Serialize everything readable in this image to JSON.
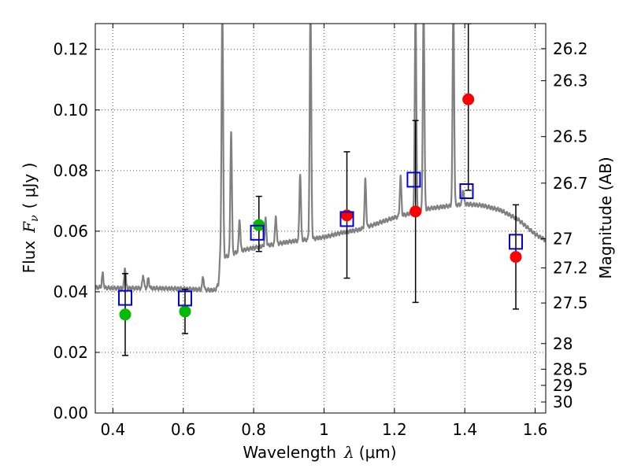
{
  "chart_data": {
    "type": "scatter",
    "xlim": [
      0.35,
      1.63
    ],
    "ylim": [
      0.0,
      0.1285
    ],
    "xticks": [
      {
        "value": 0.4,
        "label": "0.4"
      },
      {
        "value": 0.6,
        "label": "0.6"
      },
      {
        "value": 0.8,
        "label": "0.8"
      },
      {
        "value": 1.0,
        "label": "1"
      },
      {
        "value": 1.2,
        "label": "1.2"
      },
      {
        "value": 1.4,
        "label": "1.4"
      },
      {
        "value": 1.6,
        "label": "1.6"
      }
    ],
    "yticks": [
      {
        "value": 0.0,
        "label": "0.00"
      },
      {
        "value": 0.02,
        "label": "0.02"
      },
      {
        "value": 0.04,
        "label": "0.04"
      },
      {
        "value": 0.06,
        "label": "0.06"
      },
      {
        "value": 0.08,
        "label": "0.08"
      },
      {
        "value": 0.1,
        "label": "0.10"
      },
      {
        "value": 0.12,
        "label": "0.12"
      }
    ],
    "magnitude_ticks": [
      "26.2",
      "26.3",
      "26.5",
      "26.7",
      "27",
      "27.2",
      "27.5",
      "28",
      "28.5",
      "29",
      "30"
    ],
    "grid": true,
    "xlabel": "Wavelength",
    "xlabel_symbol": "λ",
    "xlabel_unit": "(μm)",
    "ylabel": "Flux",
    "ylabel_symbol": "F",
    "ylabel_symbol_sub": "ν",
    "ylabel_unit": "( μJy )",
    "y2label": "Magnitude (AB)",
    "series": [
      {
        "name": "model spectrum",
        "style": "line",
        "color": "#808080",
        "continuum": [
          [
            0.35,
            0.0415
          ],
          [
            0.4,
            0.0412
          ],
          [
            0.5,
            0.0412
          ],
          [
            0.6,
            0.041
          ],
          [
            0.69,
            0.0405
          ],
          [
            0.7,
            0.0425
          ],
          [
            0.705,
            0.052
          ],
          [
            0.72,
            0.0515
          ],
          [
            0.76,
            0.0535
          ],
          [
            0.8,
            0.0545
          ],
          [
            0.85,
            0.0555
          ],
          [
            0.9,
            0.0565
          ],
          [
            1.0,
            0.058
          ],
          [
            1.05,
            0.0595
          ],
          [
            1.1,
            0.0605
          ],
          [
            1.15,
            0.0625
          ],
          [
            1.2,
            0.0645
          ],
          [
            1.25,
            0.066
          ],
          [
            1.3,
            0.0675
          ],
          [
            1.4,
            0.069
          ],
          [
            1.45,
            0.0685
          ],
          [
            1.5,
            0.067
          ],
          [
            1.55,
            0.064
          ],
          [
            1.6,
            0.059
          ],
          [
            1.63,
            0.057
          ]
        ],
        "emission_lines": [
          [
            0.371,
            0.046
          ],
          [
            0.4345,
            0.048
          ],
          [
            0.4861,
            0.0455
          ],
          [
            0.5007,
            0.0445
          ],
          [
            0.6563,
            0.045
          ],
          [
            0.711,
            0.135
          ],
          [
            0.736,
            0.093
          ],
          [
            0.76,
            0.064
          ],
          [
            0.834,
            0.064
          ],
          [
            0.863,
            0.065
          ],
          [
            0.9322,
            0.079
          ],
          [
            0.9615,
            0.135
          ],
          [
            1.1175,
            0.077
          ],
          [
            1.2175,
            0.078
          ],
          [
            1.26,
            0.135
          ],
          [
            1.283,
            0.135
          ],
          [
            1.3675,
            0.135
          ],
          [
            1.395,
            0.074
          ]
        ]
      },
      {
        "name": "observed (green)",
        "style": "circle",
        "color": "#00bb00",
        "points": [
          {
            "x": 0.435,
            "y": 0.0325
          },
          {
            "x": 0.605,
            "y": 0.0335
          },
          {
            "x": 0.815,
            "y": 0.062
          }
        ]
      },
      {
        "name": "observed (red)",
        "style": "circle",
        "color": "#ff0000",
        "points": [
          {
            "x": 1.065,
            "y": 0.0652
          },
          {
            "x": 1.26,
            "y": 0.0665
          },
          {
            "x": 1.41,
            "y": 0.1035
          },
          {
            "x": 1.545,
            "y": 0.0515
          }
        ]
      },
      {
        "name": "synthetic photometry",
        "style": "open-square",
        "color": "#0000dd",
        "points": [
          {
            "x": 0.435,
            "y": 0.038
          },
          {
            "x": 0.605,
            "y": 0.0378
          },
          {
            "x": 0.81,
            "y": 0.0595
          },
          {
            "x": 1.065,
            "y": 0.064
          },
          {
            "x": 1.255,
            "y": 0.077
          },
          {
            "x": 1.405,
            "y": 0.0732
          },
          {
            "x": 1.545,
            "y": 0.0565
          }
        ]
      }
    ],
    "error_bars": [
      {
        "x": 0.435,
        "low": 0.019,
        "high": 0.046
      },
      {
        "x": 0.605,
        "low": 0.0262,
        "high": 0.0408
      },
      {
        "x": 0.815,
        "low": 0.0533,
        "high": 0.0715
      },
      {
        "x": 1.065,
        "low": 0.0445,
        "high": 0.0862
      },
      {
        "x": 1.26,
        "low": 0.0365,
        "high": 0.0965
      },
      {
        "x": 1.41,
        "low": 0.0735,
        "high": 0.1285
      },
      {
        "x": 1.545,
        "low": 0.0343,
        "high": 0.0687
      }
    ],
    "colors": {
      "errorbar": "#000000",
      "grid": "#555555"
    }
  }
}
